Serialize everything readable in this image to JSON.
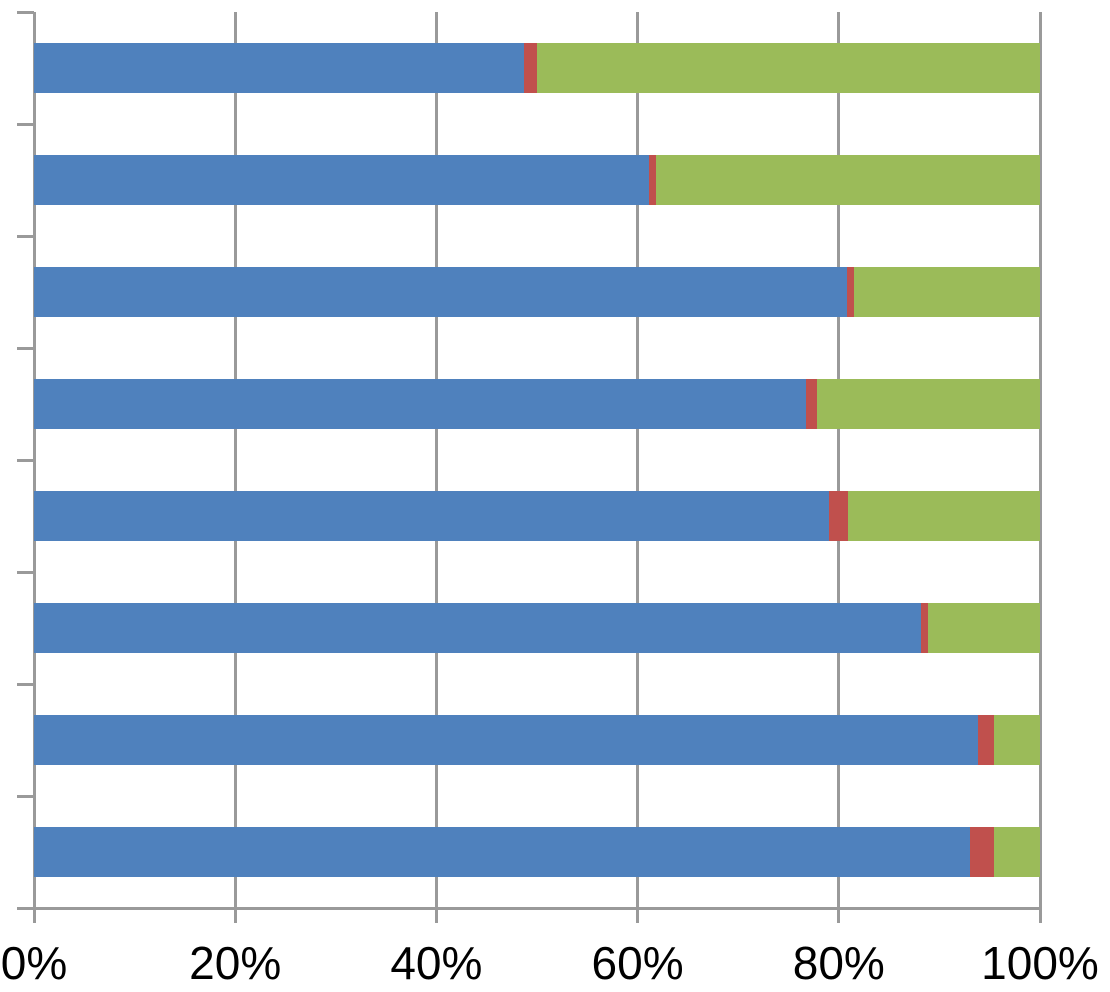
{
  "chart_data": {
    "type": "bar",
    "orientation": "horizontal",
    "stacked": true,
    "title": "",
    "xlabel": "",
    "ylabel": "",
    "xlim": [
      0,
      100
    ],
    "x_tick_labels": [
      "0%",
      "20%",
      "40%",
      "60%",
      "80%",
      "100%"
    ],
    "grid": "vertical-gridlines-on",
    "legend_position": "none",
    "categories": [
      "",
      "",
      "",
      "",
      "",
      "",
      "",
      ""
    ],
    "series": [
      {
        "name": "series-blue",
        "color": "#4F81BD",
        "values": [
          48.7,
          61.1,
          80.8,
          76.7,
          79.0,
          88.2,
          93.8,
          93.0
        ]
      },
      {
        "name": "series-red",
        "color": "#C0504D",
        "values": [
          1.3,
          0.7,
          0.7,
          1.1,
          1.9,
          0.7,
          1.6,
          2.4
        ]
      },
      {
        "name": "series-green",
        "color": "#9BBB59",
        "values": [
          50.0,
          38.2,
          18.5,
          22.2,
          19.1,
          11.1,
          4.6,
          4.6
        ]
      }
    ]
  },
  "style": {
    "axis_color": "#9a9a9a",
    "label_color": "#000000",
    "background": "#ffffff"
  }
}
